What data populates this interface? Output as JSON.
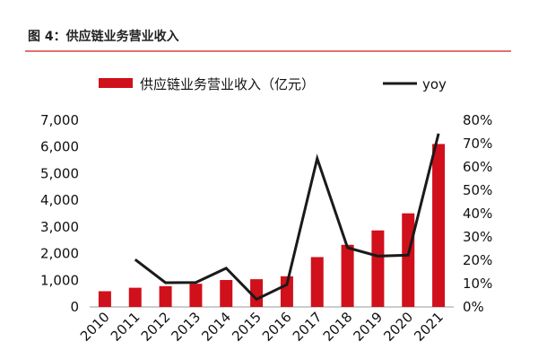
{
  "header": {
    "title": "图 4：供应链业务营业收入"
  },
  "colors": {
    "bar": "#d0101b",
    "line": "#1a1a1a",
    "rule": "#e07070"
  },
  "chart_data": {
    "type": "bar",
    "categories": [
      "2010",
      "2011",
      "2012",
      "2013",
      "2014",
      "2015",
      "2016",
      "2017",
      "2018",
      "2019",
      "2020",
      "2021"
    ],
    "series": [
      {
        "name": "供应链业务营业收入（亿元）",
        "type": "bar",
        "axis": "left",
        "values": [
          590,
          720,
          780,
          870,
          1010,
          1040,
          1150,
          1870,
          2330,
          2870,
          3510,
          6110
        ]
      },
      {
        "name": "yoy",
        "type": "line",
        "axis": "right",
        "values": [
          null,
          20.3,
          10.4,
          10.5,
          16.6,
          3.3,
          9.6,
          63.6,
          25.4,
          21.8,
          22.2,
          74.3
        ]
      }
    ],
    "y_left": {
      "ylim": [
        0,
        7000
      ],
      "ticks": [
        "0",
        "1,000",
        "2,000",
        "3,000",
        "4,000",
        "5,000",
        "6,000",
        "7,000"
      ]
    },
    "y_right": {
      "ylim": [
        0,
        80
      ],
      "ticks": [
        "0%",
        "10%",
        "20%",
        "30%",
        "40%",
        "50%",
        "60%",
        "70%",
        "80%"
      ]
    },
    "legend": {
      "placement": "top"
    },
    "grid": false
  }
}
